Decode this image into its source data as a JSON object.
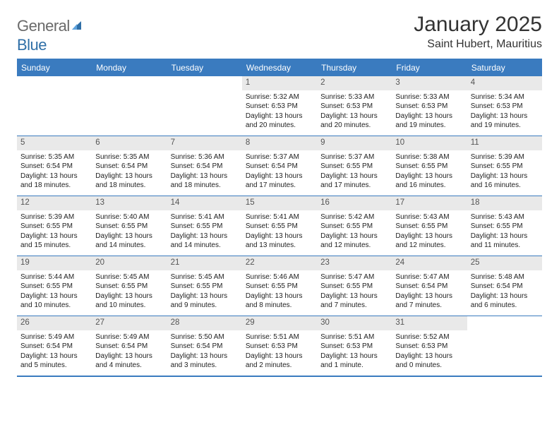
{
  "brand": {
    "name_part1": "General",
    "name_part2": "Blue"
  },
  "colors": {
    "brand_blue": "#2f6fa7",
    "header_blue": "#3a7bbf",
    "daynum_bg": "#e9e9e9",
    "text": "#333333"
  },
  "typography": {
    "title_fontsize": 30,
    "location_fontsize": 16,
    "weekday_fontsize": 12,
    "cell_fontsize": 10
  },
  "title": "January 2025",
  "location": "Saint Hubert, Mauritius",
  "weekdays": [
    "Sunday",
    "Monday",
    "Tuesday",
    "Wednesday",
    "Thursday",
    "Friday",
    "Saturday"
  ],
  "weeks": [
    [
      {
        "day": "",
        "sunrise": "",
        "sunset": "",
        "daylight": ""
      },
      {
        "day": "",
        "sunrise": "",
        "sunset": "",
        "daylight": ""
      },
      {
        "day": "",
        "sunrise": "",
        "sunset": "",
        "daylight": ""
      },
      {
        "day": "1",
        "sunrise": "Sunrise: 5:32 AM",
        "sunset": "Sunset: 6:53 PM",
        "daylight": "Daylight: 13 hours and 20 minutes."
      },
      {
        "day": "2",
        "sunrise": "Sunrise: 5:33 AM",
        "sunset": "Sunset: 6:53 PM",
        "daylight": "Daylight: 13 hours and 20 minutes."
      },
      {
        "day": "3",
        "sunrise": "Sunrise: 5:33 AM",
        "sunset": "Sunset: 6:53 PM",
        "daylight": "Daylight: 13 hours and 19 minutes."
      },
      {
        "day": "4",
        "sunrise": "Sunrise: 5:34 AM",
        "sunset": "Sunset: 6:53 PM",
        "daylight": "Daylight: 13 hours and 19 minutes."
      }
    ],
    [
      {
        "day": "5",
        "sunrise": "Sunrise: 5:35 AM",
        "sunset": "Sunset: 6:54 PM",
        "daylight": "Daylight: 13 hours and 18 minutes."
      },
      {
        "day": "6",
        "sunrise": "Sunrise: 5:35 AM",
        "sunset": "Sunset: 6:54 PM",
        "daylight": "Daylight: 13 hours and 18 minutes."
      },
      {
        "day": "7",
        "sunrise": "Sunrise: 5:36 AM",
        "sunset": "Sunset: 6:54 PM",
        "daylight": "Daylight: 13 hours and 18 minutes."
      },
      {
        "day": "8",
        "sunrise": "Sunrise: 5:37 AM",
        "sunset": "Sunset: 6:54 PM",
        "daylight": "Daylight: 13 hours and 17 minutes."
      },
      {
        "day": "9",
        "sunrise": "Sunrise: 5:37 AM",
        "sunset": "Sunset: 6:55 PM",
        "daylight": "Daylight: 13 hours and 17 minutes."
      },
      {
        "day": "10",
        "sunrise": "Sunrise: 5:38 AM",
        "sunset": "Sunset: 6:55 PM",
        "daylight": "Daylight: 13 hours and 16 minutes."
      },
      {
        "day": "11",
        "sunrise": "Sunrise: 5:39 AM",
        "sunset": "Sunset: 6:55 PM",
        "daylight": "Daylight: 13 hours and 16 minutes."
      }
    ],
    [
      {
        "day": "12",
        "sunrise": "Sunrise: 5:39 AM",
        "sunset": "Sunset: 6:55 PM",
        "daylight": "Daylight: 13 hours and 15 minutes."
      },
      {
        "day": "13",
        "sunrise": "Sunrise: 5:40 AM",
        "sunset": "Sunset: 6:55 PM",
        "daylight": "Daylight: 13 hours and 14 minutes."
      },
      {
        "day": "14",
        "sunrise": "Sunrise: 5:41 AM",
        "sunset": "Sunset: 6:55 PM",
        "daylight": "Daylight: 13 hours and 14 minutes."
      },
      {
        "day": "15",
        "sunrise": "Sunrise: 5:41 AM",
        "sunset": "Sunset: 6:55 PM",
        "daylight": "Daylight: 13 hours and 13 minutes."
      },
      {
        "day": "16",
        "sunrise": "Sunrise: 5:42 AM",
        "sunset": "Sunset: 6:55 PM",
        "daylight": "Daylight: 13 hours and 12 minutes."
      },
      {
        "day": "17",
        "sunrise": "Sunrise: 5:43 AM",
        "sunset": "Sunset: 6:55 PM",
        "daylight": "Daylight: 13 hours and 12 minutes."
      },
      {
        "day": "18",
        "sunrise": "Sunrise: 5:43 AM",
        "sunset": "Sunset: 6:55 PM",
        "daylight": "Daylight: 13 hours and 11 minutes."
      }
    ],
    [
      {
        "day": "19",
        "sunrise": "Sunrise: 5:44 AM",
        "sunset": "Sunset: 6:55 PM",
        "daylight": "Daylight: 13 hours and 10 minutes."
      },
      {
        "day": "20",
        "sunrise": "Sunrise: 5:45 AM",
        "sunset": "Sunset: 6:55 PM",
        "daylight": "Daylight: 13 hours and 10 minutes."
      },
      {
        "day": "21",
        "sunrise": "Sunrise: 5:45 AM",
        "sunset": "Sunset: 6:55 PM",
        "daylight": "Daylight: 13 hours and 9 minutes."
      },
      {
        "day": "22",
        "sunrise": "Sunrise: 5:46 AM",
        "sunset": "Sunset: 6:55 PM",
        "daylight": "Daylight: 13 hours and 8 minutes."
      },
      {
        "day": "23",
        "sunrise": "Sunrise: 5:47 AM",
        "sunset": "Sunset: 6:55 PM",
        "daylight": "Daylight: 13 hours and 7 minutes."
      },
      {
        "day": "24",
        "sunrise": "Sunrise: 5:47 AM",
        "sunset": "Sunset: 6:54 PM",
        "daylight": "Daylight: 13 hours and 7 minutes."
      },
      {
        "day": "25",
        "sunrise": "Sunrise: 5:48 AM",
        "sunset": "Sunset: 6:54 PM",
        "daylight": "Daylight: 13 hours and 6 minutes."
      }
    ],
    [
      {
        "day": "26",
        "sunrise": "Sunrise: 5:49 AM",
        "sunset": "Sunset: 6:54 PM",
        "daylight": "Daylight: 13 hours and 5 minutes."
      },
      {
        "day": "27",
        "sunrise": "Sunrise: 5:49 AM",
        "sunset": "Sunset: 6:54 PM",
        "daylight": "Daylight: 13 hours and 4 minutes."
      },
      {
        "day": "28",
        "sunrise": "Sunrise: 5:50 AM",
        "sunset": "Sunset: 6:54 PM",
        "daylight": "Daylight: 13 hours and 3 minutes."
      },
      {
        "day": "29",
        "sunrise": "Sunrise: 5:51 AM",
        "sunset": "Sunset: 6:53 PM",
        "daylight": "Daylight: 13 hours and 2 minutes."
      },
      {
        "day": "30",
        "sunrise": "Sunrise: 5:51 AM",
        "sunset": "Sunset: 6:53 PM",
        "daylight": "Daylight: 13 hours and 1 minute."
      },
      {
        "day": "31",
        "sunrise": "Sunrise: 5:52 AM",
        "sunset": "Sunset: 6:53 PM",
        "daylight": "Daylight: 13 hours and 0 minutes."
      },
      {
        "day": "",
        "sunrise": "",
        "sunset": "",
        "daylight": ""
      }
    ]
  ]
}
